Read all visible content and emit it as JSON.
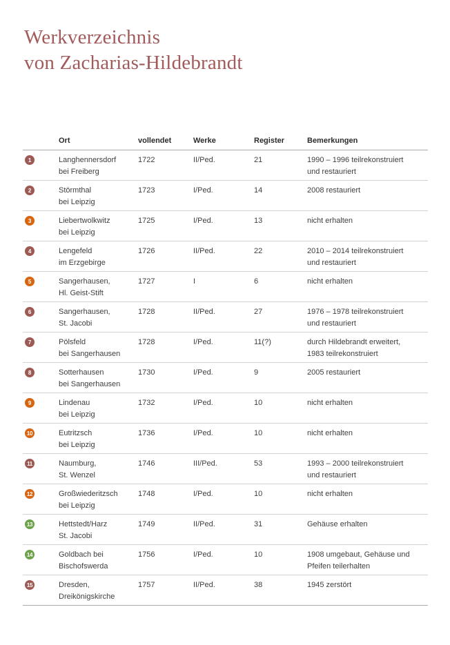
{
  "page_title": {
    "line1": "Werkverzeichnis",
    "line2": "von Zacharias-Hildebrandt"
  },
  "colors": {
    "title": "#a25a5a",
    "badge_maroon": "#9d5a54",
    "badge_orange": "#d8650f",
    "badge_green": "#6da24b"
  },
  "table": {
    "columns": [
      "Ort",
      "vollendet",
      "Werke",
      "Register",
      "Bemerkungen"
    ],
    "rows": [
      {
        "num": "1",
        "badge_color": "badge_maroon",
        "ort": [
          "Langhennersdorf",
          "bei Freiberg"
        ],
        "vollendet": "1722",
        "werke": "II/Ped.",
        "register": "21",
        "bemerkungen": [
          "1990 – 1996 teilrekonstruiert",
          "und restauriert"
        ]
      },
      {
        "num": "2",
        "badge_color": "badge_maroon",
        "ort": [
          "Störmthal",
          "bei Leipzig"
        ],
        "vollendet": "1723",
        "werke": "I/Ped.",
        "register": "14",
        "bemerkungen": [
          "2008 restauriert"
        ]
      },
      {
        "num": "3",
        "badge_color": "badge_orange",
        "ort": [
          "Liebertwolkwitz",
          "bei Leipzig"
        ],
        "vollendet": "1725",
        "werke": "I/Ped.",
        "register": "13",
        "bemerkungen": [
          "nicht erhalten"
        ]
      },
      {
        "num": "4",
        "badge_color": "badge_maroon",
        "ort": [
          "Lengefeld",
          "im Erzgebirge"
        ],
        "vollendet": "1726",
        "werke": "II/Ped.",
        "register": "22",
        "bemerkungen": [
          "2010 – 2014 teilrekonstruiert",
          "und restauriert"
        ]
      },
      {
        "num": "5",
        "badge_color": "badge_orange",
        "ort": [
          "Sangerhausen,",
          "Hl. Geist-Stift"
        ],
        "vollendet": "1727",
        "werke": "I",
        "register": "6",
        "bemerkungen": [
          "nicht erhalten"
        ]
      },
      {
        "num": "6",
        "badge_color": "badge_maroon",
        "ort": [
          "Sangerhausen,",
          "St. Jacobi"
        ],
        "vollendet": "1728",
        "werke": "II/Ped.",
        "register": "27",
        "bemerkungen": [
          "1976 – 1978 teilrekonstruiert",
          "und restauriert"
        ]
      },
      {
        "num": "7",
        "badge_color": "badge_maroon",
        "ort": [
          "Pölsfeld",
          "bei Sangerhausen"
        ],
        "vollendet": "1728",
        "werke": "I/Ped.",
        "register": "11(?)",
        "bemerkungen": [
          "durch Hildebrandt erweitert,",
          "1983 teilrekonstruiert"
        ]
      },
      {
        "num": "8",
        "badge_color": "badge_maroon",
        "ort": [
          "Sotterhausen",
          "bei Sangerhausen"
        ],
        "vollendet": "1730",
        "werke": "I/Ped.",
        "register": "9",
        "bemerkungen": [
          "2005 restauriert"
        ]
      },
      {
        "num": "9",
        "badge_color": "badge_orange",
        "ort": [
          "Lindenau",
          "bei Leipzig"
        ],
        "vollendet": "1732",
        "werke": "I/Ped.",
        "register": "10",
        "bemerkungen": [
          "nicht erhalten"
        ]
      },
      {
        "num": "10",
        "badge_color": "badge_orange",
        "ort": [
          "Eutritzsch",
          "bei Leipzig"
        ],
        "vollendet": "1736",
        "werke": "I/Ped.",
        "register": "10",
        "bemerkungen": [
          "nicht erhalten"
        ]
      },
      {
        "num": "11",
        "badge_color": "badge_maroon",
        "ort": [
          "Naumburg,",
          "St. Wenzel"
        ],
        "vollendet": "1746",
        "werke": "III/Ped.",
        "register": "53",
        "bemerkungen": [
          "1993 – 2000 teilrekonstruiert",
          "und restauriert"
        ]
      },
      {
        "num": "12",
        "badge_color": "badge_orange",
        "ort": [
          "Großwiederitzsch",
          "bei Leipzig"
        ],
        "vollendet": "1748",
        "werke": "I/Ped.",
        "register": "10",
        "bemerkungen": [
          "nicht erhalten"
        ]
      },
      {
        "num": "13",
        "badge_color": "badge_green",
        "ort": [
          "Hettstedt/Harz",
          "St. Jacobi"
        ],
        "vollendet": "1749",
        "werke": "II/Ped.",
        "register": "31",
        "bemerkungen": [
          "Gehäuse erhalten"
        ]
      },
      {
        "num": "14",
        "badge_color": "badge_green",
        "ort": [
          "Goldbach bei",
          "Bischofswerda"
        ],
        "vollendet": "1756",
        "werke": "I/Ped.",
        "register": "10",
        "bemerkungen": [
          "1908 umgebaut, Gehäuse und",
          "Pfeifen teilerhalten"
        ]
      },
      {
        "num": "15",
        "badge_color": "badge_maroon",
        "ort": [
          "Dresden,",
          "Dreikönigskirche"
        ],
        "vollendet": "1757",
        "werke": "II/Ped.",
        "register": "38",
        "bemerkungen": [
          "1945 zerstört"
        ]
      }
    ]
  }
}
